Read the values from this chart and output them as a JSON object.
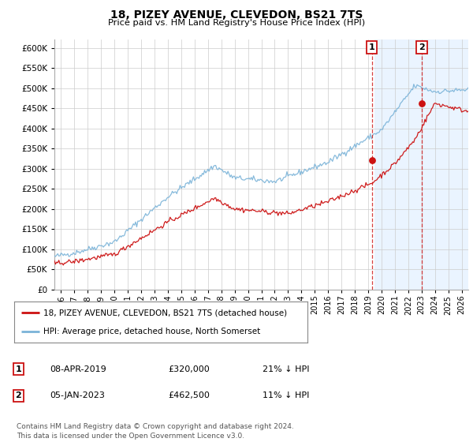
{
  "title": "18, PIZEY AVENUE, CLEVEDON, BS21 7TS",
  "subtitle": "Price paid vs. HM Land Registry's House Price Index (HPI)",
  "ylim": [
    0,
    620000
  ],
  "yticks": [
    0,
    50000,
    100000,
    150000,
    200000,
    250000,
    300000,
    350000,
    400000,
    450000,
    500000,
    550000,
    600000
  ],
  "xlim_start": 1995.5,
  "xlim_end": 2026.5,
  "hpi_color": "#7ab3d8",
  "price_color": "#cc1111",
  "vline_color": "#cc1111",
  "marker1_x": 2019.27,
  "marker1_y": 320000,
  "marker2_x": 2023.02,
  "marker2_y": 462500,
  "marker1_label": "1",
  "marker2_label": "2",
  "legend_line1": "18, PIZEY AVENUE, CLEVEDON, BS21 7TS (detached house)",
  "legend_line2": "HPI: Average price, detached house, North Somerset",
  "table_row1": [
    "1",
    "08-APR-2019",
    "£320,000",
    "21% ↓ HPI"
  ],
  "table_row2": [
    "2",
    "05-JAN-2023",
    "£462,500",
    "11% ↓ HPI"
  ],
  "footer": "Contains HM Land Registry data © Crown copyright and database right 2024.\nThis data is licensed under the Open Government Licence v3.0.",
  "background_color": "#ffffff",
  "grid_color": "#cccccc",
  "shaded_region_color": "#ddeeff",
  "shaded_start": 2019.5
}
